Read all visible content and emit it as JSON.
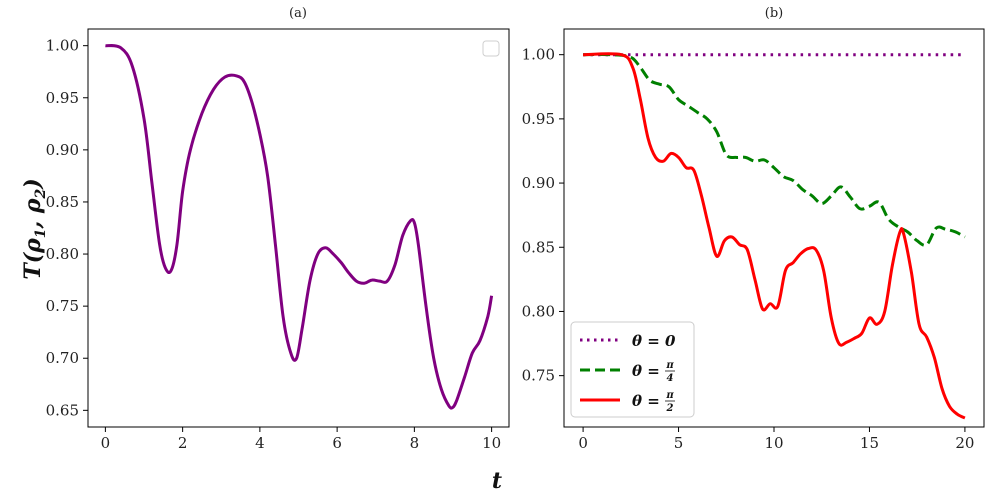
{
  "figure": {
    "ylabel": "T(ρ1, ρ2)",
    "xlabel": "t"
  },
  "chart_data": [
    {
      "type": "line",
      "panel_title": "(a)",
      "xlim": [
        -0.45,
        10.45
      ],
      "ylim": [
        0.634,
        1.016
      ],
      "xticks": [
        0,
        2,
        4,
        6,
        8,
        10
      ],
      "yticks": [
        0.65,
        0.7,
        0.75,
        0.8,
        0.85,
        0.9,
        0.95,
        1.0
      ],
      "xtick_labels": [
        "0",
        "2",
        "4",
        "6",
        "8",
        "10"
      ],
      "ytick_labels": [
        "0.65",
        "0.70",
        "0.75",
        "0.80",
        "0.85",
        "0.90",
        "0.95",
        "1.00"
      ],
      "legend": "top-right (empty)",
      "series": [
        {
          "color": "#800080",
          "style": "solid",
          "x": [
            0,
            0.4,
            0.7,
            1.0,
            1.2,
            1.4,
            1.55,
            1.7,
            1.85,
            2.0,
            2.2,
            2.5,
            2.8,
            3.1,
            3.4,
            3.6,
            3.8,
            4.0,
            4.2,
            4.4,
            4.6,
            4.8,
            4.95,
            5.1,
            5.3,
            5.5,
            5.7,
            5.9,
            6.1,
            6.3,
            6.5,
            6.7,
            6.9,
            7.1,
            7.3,
            7.5,
            7.7,
            7.9,
            8.0,
            8.1,
            8.3,
            8.5,
            8.7,
            8.9,
            9.0,
            9.1,
            9.3,
            9.5,
            9.7,
            9.9,
            10.0
          ],
          "y": [
            1.0,
            0.998,
            0.98,
            0.93,
            0.87,
            0.81,
            0.787,
            0.784,
            0.808,
            0.86,
            0.9,
            0.935,
            0.958,
            0.97,
            0.971,
            0.965,
            0.945,
            0.915,
            0.875,
            0.81,
            0.74,
            0.705,
            0.7,
            0.73,
            0.775,
            0.8,
            0.806,
            0.8,
            0.792,
            0.782,
            0.774,
            0.772,
            0.775,
            0.774,
            0.774,
            0.79,
            0.818,
            0.832,
            0.83,
            0.81,
            0.75,
            0.7,
            0.67,
            0.654,
            0.653,
            0.66,
            0.682,
            0.705,
            0.717,
            0.74,
            0.76
          ]
        }
      ]
    },
    {
      "type": "line",
      "panel_title": "(b)",
      "xlim": [
        -1.0,
        21.0
      ],
      "ylim": [
        0.71,
        1.02
      ],
      "xticks": [
        0,
        5,
        10,
        15,
        20
      ],
      "yticks": [
        0.75,
        0.8,
        0.85,
        0.9,
        0.95,
        1.0
      ],
      "xtick_labels": [
        "0",
        "5",
        "10",
        "15",
        "20"
      ],
      "ytick_labels": [
        "0.75",
        "0.80",
        "0.85",
        "0.90",
        "0.95",
        "1.00"
      ],
      "legend_position": "lower-left",
      "series": [
        {
          "name": "θ = 0",
          "color": "#800080",
          "style": "dotted",
          "x": [
            0,
            20
          ],
          "y": [
            1.0,
            1.0
          ]
        },
        {
          "name": "θ = π/4",
          "color": "#008000",
          "style": "dashed",
          "x": [
            0,
            1.5,
            2.5,
            3.0,
            3.5,
            4.0,
            4.5,
            5.0,
            5.5,
            6.0,
            6.5,
            7.0,
            7.5,
            8.0,
            8.5,
            9.0,
            9.5,
            10.0,
            10.5,
            11.0,
            11.5,
            12.0,
            12.5,
            13.0,
            13.5,
            14.0,
            14.5,
            15.0,
            15.5,
            16.0,
            16.5,
            17.0,
            17.5,
            18.0,
            18.5,
            19.0,
            19.5,
            20.0
          ],
          "y": [
            1.0,
            1.0,
            0.998,
            0.99,
            0.98,
            0.977,
            0.975,
            0.965,
            0.96,
            0.955,
            0.95,
            0.94,
            0.922,
            0.92,
            0.92,
            0.917,
            0.918,
            0.912,
            0.905,
            0.902,
            0.895,
            0.89,
            0.884,
            0.89,
            0.897,
            0.889,
            0.88,
            0.882,
            0.885,
            0.872,
            0.866,
            0.862,
            0.855,
            0.852,
            0.865,
            0.864,
            0.862,
            0.858
          ]
        },
        {
          "name": "θ = π/2",
          "color": "#ff0000",
          "style": "solid",
          "x": [
            0,
            2.0,
            2.6,
            3.0,
            3.4,
            3.8,
            4.2,
            4.6,
            5.0,
            5.4,
            5.8,
            6.2,
            6.6,
            7.0,
            7.4,
            7.8,
            8.2,
            8.6,
            9.0,
            9.4,
            9.8,
            10.2,
            10.6,
            11.0,
            11.4,
            11.8,
            12.2,
            12.6,
            13.0,
            13.4,
            13.8,
            14.2,
            14.6,
            15.0,
            15.4,
            15.8,
            16.2,
            16.6,
            16.8,
            17.2,
            17.6,
            18.0,
            18.4,
            18.8,
            19.2,
            19.6,
            20.0
          ],
          "y": [
            1.0,
            1.0,
            0.99,
            0.965,
            0.935,
            0.92,
            0.917,
            0.923,
            0.92,
            0.912,
            0.91,
            0.89,
            0.865,
            0.843,
            0.855,
            0.858,
            0.852,
            0.848,
            0.825,
            0.802,
            0.806,
            0.804,
            0.832,
            0.838,
            0.845,
            0.849,
            0.848,
            0.832,
            0.795,
            0.775,
            0.776,
            0.779,
            0.783,
            0.795,
            0.79,
            0.8,
            0.836,
            0.862,
            0.86,
            0.83,
            0.79,
            0.78,
            0.764,
            0.74,
            0.726,
            0.72,
            0.717
          ]
        }
      ]
    }
  ]
}
